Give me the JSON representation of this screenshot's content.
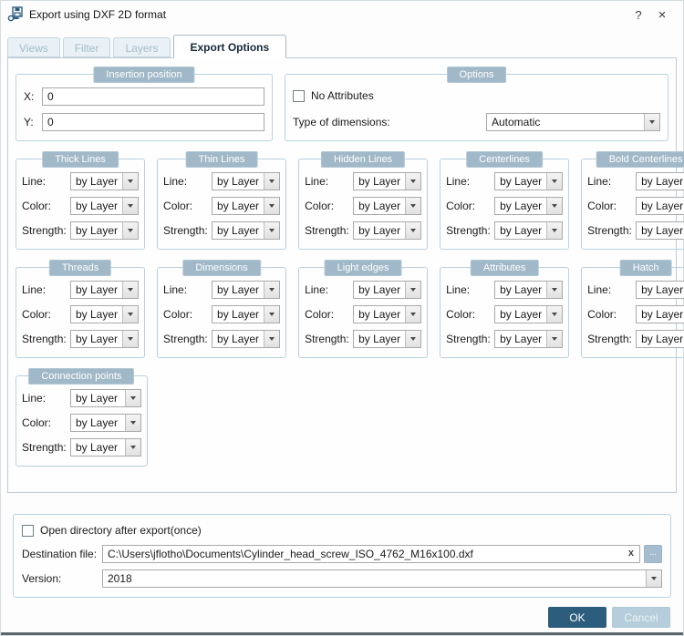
{
  "window": {
    "title": "Export using DXF 2D format",
    "help": "?",
    "close": "×"
  },
  "tabs": [
    {
      "label": "Views",
      "active": false
    },
    {
      "label": "Filter",
      "active": false
    },
    {
      "label": "Layers",
      "active": false
    },
    {
      "label": "Export Options",
      "active": true
    }
  ],
  "insertion": {
    "title": "Insertion position",
    "fields": [
      {
        "label": "X:",
        "value": "0"
      },
      {
        "label": "Y:",
        "value": "0"
      }
    ]
  },
  "options": {
    "title": "Options",
    "checkbox_label": "No Attributes",
    "checkbox_checked": false,
    "type_label": "Type of dimensions:",
    "type_value": "Automatic"
  },
  "line_groups": {
    "rows": [
      [
        "Thick Lines",
        "Thin Lines",
        "Hidden Lines",
        "Centerlines",
        "Bold Centerlines"
      ],
      [
        "Threads",
        "Dimensions",
        "Light edges",
        "Attributes",
        "Hatch"
      ],
      [
        "Connection points"
      ]
    ],
    "field_labels": [
      "Line:",
      "Color:",
      "Strength:"
    ],
    "value": "by Layer"
  },
  "footer": {
    "checkbox_label": "Open directory after export(once)",
    "checkbox_checked": false,
    "dest_label": "Destination file:",
    "dest_value": "C:\\Users\\jflotho\\Documents\\Cylinder_head_screw_ISO_4762_M16x100.dxf",
    "clear": "x",
    "browse": "...",
    "version_label": "Version:",
    "version_value": "2018"
  },
  "buttons": {
    "ok": "OK",
    "cancel": "Cancel"
  },
  "colors": {
    "accent": "#2d5d7d",
    "chip": "#a1b8c8",
    "group_border": "#b9d1de"
  }
}
